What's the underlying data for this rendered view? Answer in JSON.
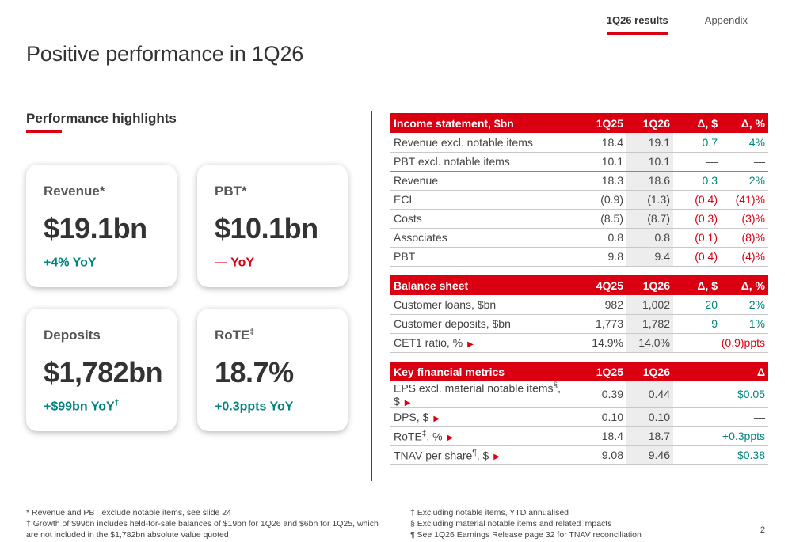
{
  "nav": {
    "items": [
      {
        "label": "1Q26 results"
      },
      {
        "label": "Appendix"
      }
    ]
  },
  "title": "Positive performance in 1Q26",
  "highlights": {
    "heading": "Performance highlights",
    "cards": [
      {
        "label": "Revenue",
        "label_sup": "*",
        "value": "$19.1bn",
        "change": "+4% YoY",
        "change_sup": "",
        "change_color": "#00847f"
      },
      {
        "label": "PBT",
        "label_sup": "*",
        "value": "$10.1bn",
        "change": "— YoY",
        "change_sup": "",
        "change_color": "#db0011"
      },
      {
        "label": "Deposits",
        "label_sup": "",
        "value": "$1,782bn",
        "change": "+$99bn YoY",
        "change_sup": "†",
        "change_color": "#00847f"
      },
      {
        "label": "RoTE",
        "label_sup": "‡",
        "value": "18.7%",
        "change": "+0.3ppts YoY",
        "change_sup": "",
        "change_color": "#00847f"
      }
    ]
  },
  "income": {
    "headers": [
      "Income statement, $bn",
      "1Q25",
      "1Q26",
      "Δ, $",
      "Δ, %"
    ],
    "rows": [
      {
        "label": "Revenue excl. notable items",
        "a": "18.4",
        "b": "19.1",
        "d": "0.7",
        "p": "4%",
        "color": "#00847f"
      },
      {
        "label": "PBT excl. notable items",
        "a": "10.1",
        "b": "10.1",
        "d": "—",
        "p": "—",
        "color": "#444444"
      },
      {
        "label": "Revenue",
        "a": "18.3",
        "b": "18.6",
        "d": "0.3",
        "p": "2%",
        "color": "#00847f"
      },
      {
        "label": "ECL",
        "a": "(0.9)",
        "b": "(1.3)",
        "d": "(0.4)",
        "p": "(41)%",
        "color": "#db0011"
      },
      {
        "label": "Costs",
        "a": "(8.5)",
        "b": "(8.7)",
        "d": "(0.3)",
        "p": "(3)%",
        "color": "#db0011"
      },
      {
        "label": "Associates",
        "a": "0.8",
        "b": "0.8",
        "d": "(0.1)",
        "p": "(8)%",
        "color": "#db0011"
      },
      {
        "label": "PBT",
        "a": "9.8",
        "b": "9.4",
        "d": "(0.4)",
        "p": "(4)%",
        "color": "#db0011"
      }
    ]
  },
  "balance": {
    "headers": [
      "Balance sheet",
      "4Q25",
      "1Q26",
      "Δ, $",
      "Δ, %"
    ],
    "rows": [
      {
        "label": "Customer loans, $bn",
        "a": "982",
        "b": "1,002",
        "d": "20",
        "p": "2%",
        "color": "#00847f"
      },
      {
        "label": "Customer deposits, $bn",
        "a": "1,773",
        "b": "1,782",
        "d": "9",
        "p": "1%",
        "color": "#00847f"
      },
      {
        "label": "CET1 ratio, %",
        "a": "14.9%",
        "b": "14.0%",
        "delta": "(0.9)ppts",
        "color": "#db0011"
      }
    ]
  },
  "metrics": {
    "headers": [
      "Key financial metrics",
      "1Q25",
      "1Q26",
      "Δ"
    ],
    "rows": [
      {
        "label": "EPS excl. material notable items",
        "sup": "§",
        "suffix": ", $",
        "a": "0.39",
        "b": "0.44",
        "delta": "$0.05",
        "color": "#00847f"
      },
      {
        "label": "DPS, $",
        "sup": "",
        "suffix": "",
        "a": "0.10",
        "b": "0.10",
        "delta": "—",
        "color": "#444444"
      },
      {
        "label": "RoTE",
        "sup": "‡",
        "suffix": ", %",
        "a": "18.4",
        "b": "18.7",
        "delta": "+0.3ppts",
        "color": "#00847f"
      },
      {
        "label": "TNAV per share",
        "sup": "¶",
        "suffix": ", $",
        "a": "9.08",
        "b": "9.46",
        "delta": "$0.38",
        "color": "#00847f"
      }
    ]
  },
  "footnotes": {
    "left": [
      "* Revenue and PBT exclude notable items, see slide 24",
      "† Growth of $99bn includes held-for-sale balances of $19bn for 1Q26 and $6bn for 1Q25, which are not included in the $1,782bn absolute value quoted"
    ],
    "right": [
      "‡ Excluding notable items, YTD annualised",
      "§ Excluding material notable items and related impacts",
      "¶ See 1Q26 Earnings Release page 32 for TNAV reconciliation"
    ]
  },
  "page_number": "2",
  "colors": {
    "accent": "#db0011",
    "positive": "#00847f",
    "highlight_col": "#ededed"
  },
  "icons": {
    "row_arrow": "caret-right-icon"
  }
}
